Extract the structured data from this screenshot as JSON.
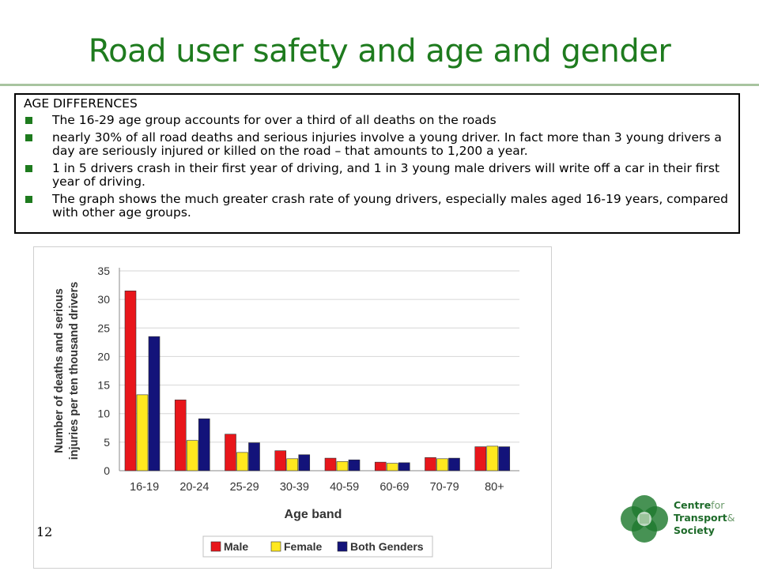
{
  "title": "Road user safety and age and gender",
  "info_box": {
    "heading": "AGE DIFFERENCES",
    "bullets": [
      "The 16-29 age group accounts for over a third of all deaths on the roads",
      "nearly 30% of all road deaths and serious injuries involve a young driver. In fact more than 3 young drivers a day are seriously injured or killed on the road – that amounts to 1,200 a year.",
      "1 in 5 drivers crash in their first year of driving, and 1 in 3 young male drivers will write off a car in their first year of driving.",
      "The graph shows the much greater crash rate of young drivers, especially males aged 16-19 years, compared with other age groups."
    ]
  },
  "page_number": "12",
  "logo": {
    "line1_bold": "Centre",
    "line1_light": "for",
    "line2_bold": "Transport",
    "line2_light": "&",
    "line3_bold": "Society"
  },
  "colors": {
    "title_green": "#1e7b1e",
    "bullet_green": "#1e7b1e",
    "male": "#e8161b",
    "female": "#ffe81f",
    "both": "#13137a"
  },
  "chart_data": {
    "type": "bar",
    "categories": [
      "16-19",
      "20-24",
      "25-29",
      "30-39",
      "40-59",
      "60-69",
      "70-79",
      "80+"
    ],
    "series": [
      {
        "name": "Male",
        "values": [
          31.5,
          12.4,
          6.4,
          3.5,
          2.2,
          1.5,
          2.3,
          4.2
        ]
      },
      {
        "name": "Female",
        "values": [
          13.3,
          5.3,
          3.2,
          2.1,
          1.6,
          1.3,
          2.1,
          4.3
        ]
      },
      {
        "name": "Both Genders",
        "values": [
          23.5,
          9.1,
          4.9,
          2.8,
          1.9,
          1.4,
          2.2,
          4.2
        ]
      }
    ],
    "xlabel": "Age band",
    "ylabel": [
      "Number of deaths and serious",
      "injuries per ten thousand drivers"
    ],
    "ylim": [
      0,
      35
    ],
    "yticks": [
      0,
      5,
      10,
      15,
      20,
      25,
      30,
      35
    ],
    "grid": true,
    "legend_position": "bottom"
  }
}
